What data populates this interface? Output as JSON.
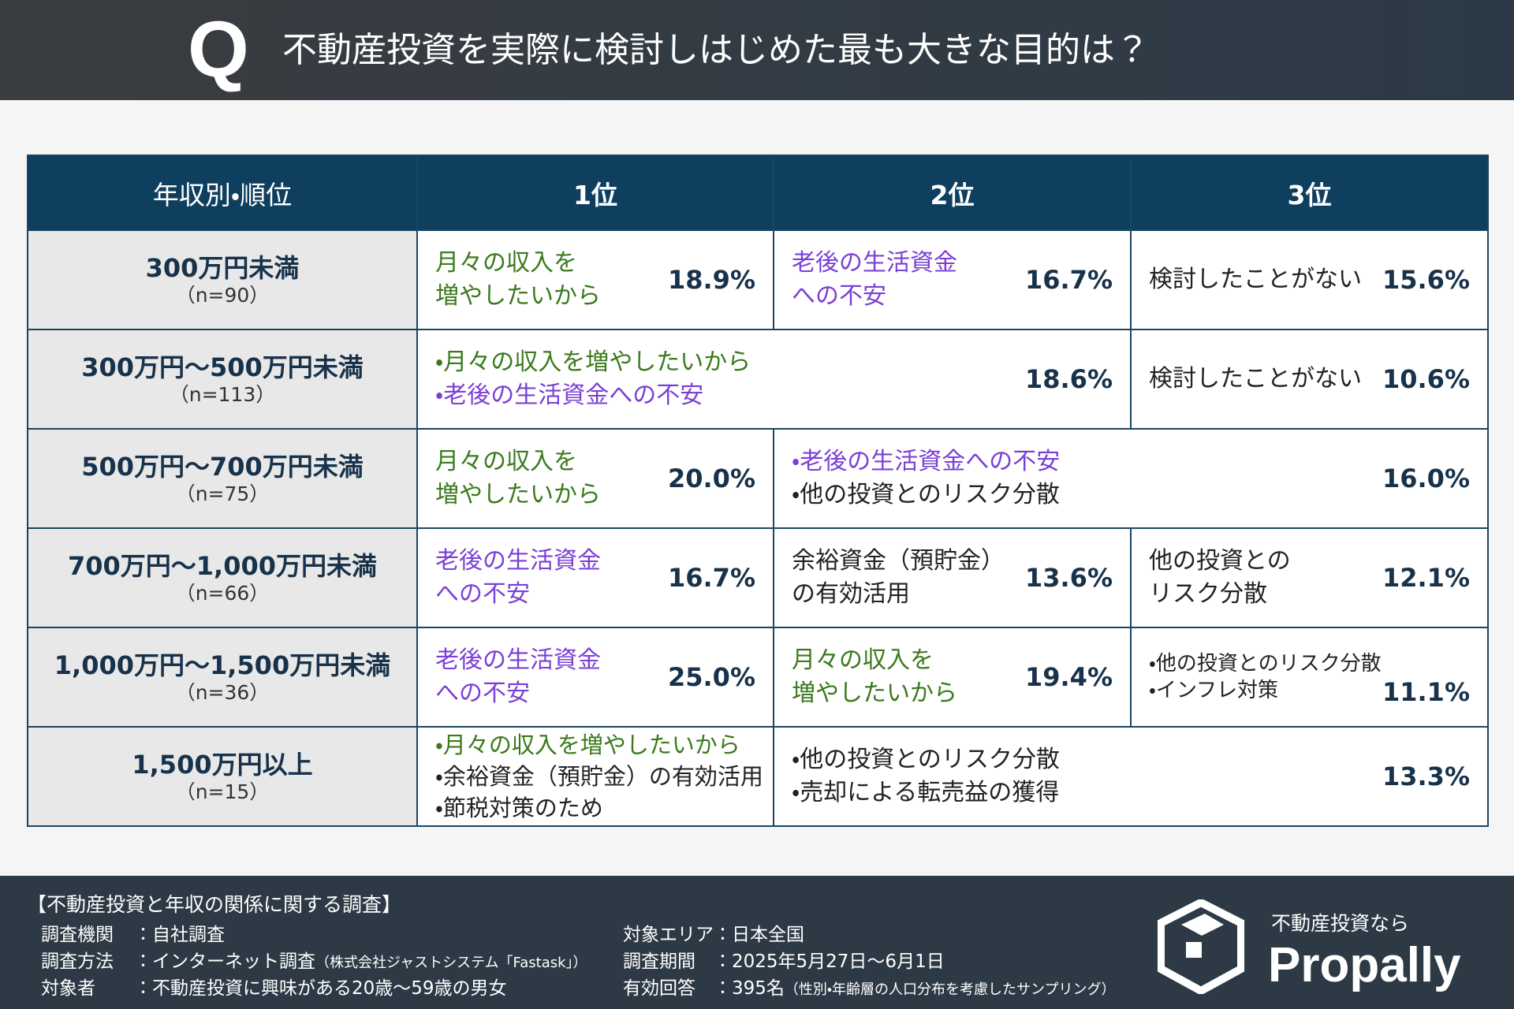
{
  "header": {
    "q": "Q",
    "title": "不動産投資を実際に検討しはじめた最も大きな目的は？"
  },
  "table": {
    "headers": [
      "年収別・順位",
      "1位",
      "2位",
      "3位"
    ],
    "rows": [
      {
        "label": "300万円未満",
        "n": "（n=90）",
        "cells": [
          {
            "items": [
              {
                "text": "月々の収入を",
                "color": "#3b7a1c"
              },
              {
                "text": "増やしたいから",
                "color": "#3b7a1c"
              }
            ],
            "pct": "18.9%"
          },
          {
            "items": [
              {
                "text": "老後の生活資金",
                "color": "#7b3fd6"
              },
              {
                "text": "への不安",
                "color": "#7b3fd6"
              }
            ],
            "pct": "16.7%"
          },
          {
            "items": [
              {
                "text": "検討したことがない",
                "color": "#222222"
              }
            ],
            "pct": "15.6%"
          }
        ]
      },
      {
        "label": "300万円〜500万円未満",
        "n": "（n=113）",
        "cells": [
          {
            "items": [
              {
                "text": "・月々の収入を増やしたいから",
                "color": "#3b7a1c"
              },
              {
                "text": "・老後の生活資金への不安",
                "color": "#7b3fd6"
              }
            ],
            "pct": "18.6%"
          },
          {
            "items": [
              {
                "text": "検討したことがない",
                "color": "#222222"
              }
            ],
            "pct": "10.6%"
          }
        ]
      },
      {
        "label": "500万円〜700万円未満",
        "n": "（n=75）",
        "cells": [
          {
            "items": [
              {
                "text": "月々の収入を",
                "color": "#3b7a1c"
              },
              {
                "text": "増やしたいから",
                "color": "#3b7a1c"
              }
            ],
            "pct": "20.0%"
          },
          {
            "items": [
              {
                "text": "・老後の生活資金への不安",
                "color": "#7b3fd6"
              },
              {
                "text": "・他の投資とのリスク分散",
                "color": "#222222"
              }
            ],
            "pct": "16.0%"
          }
        ]
      },
      {
        "label": "700万円〜1,000万円未満",
        "n": "（n=66）",
        "cells": [
          {
            "items": [
              {
                "text": "老後の生活資金",
                "color": "#7b3fd6"
              },
              {
                "text": "への不安",
                "color": "#7b3fd6"
              }
            ],
            "pct": "16.7%"
          },
          {
            "items": [
              {
                "text": "余裕資金（預貯金）",
                "color": "#222222"
              },
              {
                "text": "の有効活用",
                "color": "#222222"
              }
            ],
            "pct": "13.6%"
          },
          {
            "items": [
              {
                "text": "他の投資との",
                "color": "#222222"
              },
              {
                "text": "リスク分散",
                "color": "#222222"
              }
            ],
            "pct": "12.1%"
          }
        ]
      },
      {
        "label": "1,000万円〜1,500万円未満",
        "n": "（n=36）",
        "cells": [
          {
            "items": [
              {
                "text": "老後の生活資金",
                "color": "#7b3fd6"
              },
              {
                "text": "への不安",
                "color": "#7b3fd6"
              }
            ],
            "pct": "25.0%"
          },
          {
            "items": [
              {
                "text": "月々の収入を",
                "color": "#3b7a1c"
              },
              {
                "text": "増やしたいから",
                "color": "#3b7a1c"
              }
            ],
            "pct": "19.4%"
          },
          {
            "items": [
              {
                "text": "・他の投資とのリスク分散",
                "color": "#222222"
              },
              {
                "text": "・インフレ対策",
                "color": "#222222"
              }
            ],
            "pct": "11.1%"
          }
        ]
      },
      {
        "label": "1,500万円以上",
        "n": "（n=15）",
        "cells": [
          {
            "items": [
              {
                "text": "・月々の収入を増やしたいから",
                "color": "#3b7a1c"
              },
              {
                "text": "・余裕資金（預貯金）の有効活用",
                "color": "#222222"
              },
              {
                "text": "・節税対策のため",
                "color": "#222222"
              }
            ]
          },
          {
            "items": [
              {
                "text": "・他の投資とのリスク分散",
                "color": "#222222"
              },
              {
                "text": "・売却による転売益の獲得",
                "color": "#222222"
              }
            ],
            "pct": "13.3%"
          }
        ]
      }
    ]
  },
  "footer": {
    "title": "【不動産投資と年収の関係に関する調査】",
    "left": [
      {
        "label": "調査機関",
        "value": "：自社調査"
      },
      {
        "label": "調査方法",
        "value": "：インターネット調査",
        "note": "（株式会社ジャストシステム「Fastask」）"
      },
      {
        "label": "対象者",
        "value": "：不動産投資に興味がある20歳〜59歳の男女"
      }
    ],
    "right": [
      {
        "label": "対象エリア",
        "value": "：日本全国"
      },
      {
        "label": "調査期間",
        "value": "：2025年5月27日〜6月1日"
      },
      {
        "label": "有効回答",
        "value": "：395名",
        "note": "（性別・年齢層の人口分布を考慮したサンプリング）"
      }
    ],
    "logo": {
      "tagline": "不動産投資なら",
      "brand": "Propally"
    }
  }
}
